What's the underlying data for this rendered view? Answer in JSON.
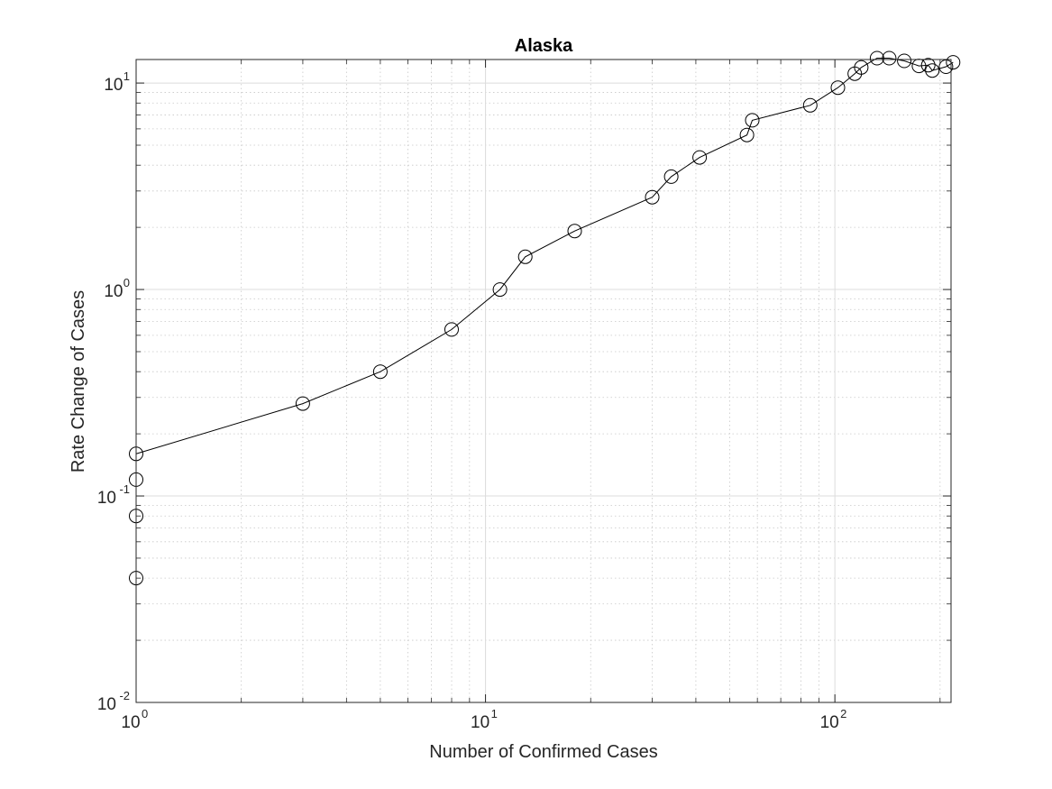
{
  "chart_data": {
    "type": "line",
    "title": "Alaska",
    "xlabel": "Number of Confirmed Cases",
    "ylabel": "Rate Change of Cases",
    "xscale": "log",
    "yscale": "log",
    "xlim": [
      1,
      215
    ],
    "ylim": [
      0.01,
      13
    ],
    "grid": true,
    "minor_grid": true,
    "x_ticks": [
      {
        "base": "10",
        "exp": "0",
        "value": 1
      },
      {
        "base": "10",
        "exp": "1",
        "value": 10
      },
      {
        "base": "10",
        "exp": "2",
        "value": 100
      }
    ],
    "y_ticks": [
      {
        "base": "10",
        "exp": "-2",
        "value": 0.01
      },
      {
        "base": "10",
        "exp": "-1",
        "value": 0.1
      },
      {
        "base": "10",
        "exp": "0",
        "value": 1
      },
      {
        "base": "10",
        "exp": "1",
        "value": 10
      }
    ],
    "series": [
      {
        "name": "Alaska",
        "color": "#000000",
        "marker": "circle",
        "x": [
          1,
          1,
          1,
          1,
          3,
          5,
          8,
          11,
          13,
          18,
          30,
          34,
          41,
          56,
          58,
          85,
          102,
          114,
          119,
          132,
          143,
          158,
          174,
          185,
          190,
          208,
          218
        ],
        "y": [
          0.04,
          0.08,
          0.12,
          0.16,
          0.28,
          0.4,
          0.64,
          1.0,
          1.44,
          1.92,
          2.8,
          3.52,
          4.36,
          5.6,
          6.6,
          7.8,
          9.5,
          11.1,
          11.9,
          13.2,
          13.2,
          12.8,
          12.1,
          12.2,
          11.5,
          12.0,
          12.6
        ]
      }
    ]
  }
}
